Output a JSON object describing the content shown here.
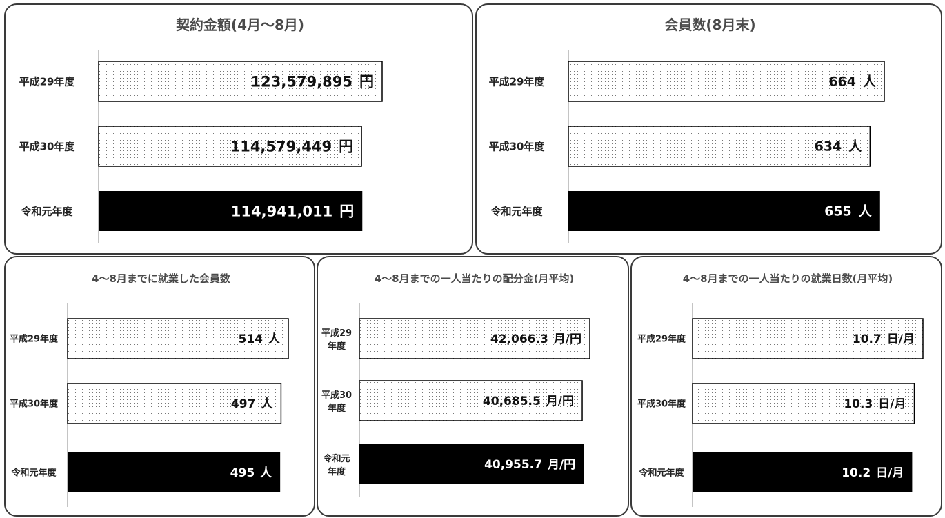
{
  "charts": [
    {
      "id": "contract",
      "title": "契約金額(4月〜8月)",
      "unit": "円",
      "categories": [
        "平成29年度",
        "平成30年度",
        "令和元年度"
      ],
      "values": [
        123579895,
        114579449,
        114941011
      ],
      "value_labels": [
        "123,579,895",
        "114,579,449",
        "114,941,011"
      ],
      "bar_styles": [
        "dotted",
        "dotted",
        "solid-black"
      ]
    },
    {
      "id": "members",
      "title": "会員数(8月末)",
      "unit": "人",
      "categories": [
        "平成29年度",
        "平成30年度",
        "令和元年度"
      ],
      "values": [
        664,
        634,
        655
      ],
      "value_labels": [
        "664",
        "634",
        "655"
      ],
      "bar_styles": [
        "dotted",
        "dotted",
        "solid-black"
      ]
    },
    {
      "id": "employed",
      "title": "4〜8月までに就業した会員数",
      "unit": "人",
      "categories": [
        "平成29年度",
        "平成30年度",
        "令和元年度"
      ],
      "values": [
        514,
        497,
        495
      ],
      "value_labels": [
        "514",
        "497",
        "495"
      ],
      "bar_styles": [
        "dotted",
        "dotted",
        "solid-black"
      ]
    },
    {
      "id": "allocation",
      "title": "4〜8月までの一人当たりの配分金(月平均)",
      "unit": "月/円",
      "categories": [
        "平成29年度",
        "平成30年度",
        "令和元年度"
      ],
      "category_lines": [
        [
          "平成29",
          "年度"
        ],
        [
          "平成30",
          "年度"
        ],
        [
          "令和元",
          "年度"
        ]
      ],
      "values": [
        42066.3,
        40685.5,
        40955.7
      ],
      "value_labels": [
        "42,066.3",
        "40,685.5",
        "40,955.7"
      ],
      "bar_styles": [
        "dotted",
        "dotted",
        "solid-black"
      ]
    },
    {
      "id": "workdays",
      "title": "4〜8月までの一人当たりの就業日数(月平均)",
      "unit": "日/月",
      "categories": [
        "平成29年度",
        "平成30年度",
        "令和元年度"
      ],
      "values": [
        10.7,
        10.3,
        10.2
      ],
      "value_labels": [
        "10.7",
        "10.3",
        "10.2"
      ],
      "bar_styles": [
        "dotted",
        "dotted",
        "solid-black"
      ]
    }
  ],
  "chart_data": [
    {
      "type": "bar",
      "orientation": "horizontal",
      "title": "契約金額(4月〜8月)",
      "categories": [
        "平成29年度",
        "平成30年度",
        "令和元年度"
      ],
      "values": [
        123579895,
        114579449,
        114941011
      ],
      "unit": "円"
    },
    {
      "type": "bar",
      "orientation": "horizontal",
      "title": "会員数(8月末)",
      "categories": [
        "平成29年度",
        "平成30年度",
        "令和元年度"
      ],
      "values": [
        664,
        634,
        655
      ],
      "unit": "人"
    },
    {
      "type": "bar",
      "orientation": "horizontal",
      "title": "4〜8月までに就業した会員数",
      "categories": [
        "平成29年度",
        "平成30年度",
        "令和元年度"
      ],
      "values": [
        514,
        497,
        495
      ],
      "unit": "人"
    },
    {
      "type": "bar",
      "orientation": "horizontal",
      "title": "4〜8月までの一人当たりの配分金(月平均)",
      "categories": [
        "平成29年度",
        "平成30年度",
        "令和元年度"
      ],
      "values": [
        42066.3,
        40685.5,
        40955.7
      ],
      "unit": "月/円"
    },
    {
      "type": "bar",
      "orientation": "horizontal",
      "title": "4〜8月までの一人当たりの就業日数(月平均)",
      "categories": [
        "平成29年度",
        "平成30年度",
        "令和元年度"
      ],
      "values": [
        10.7,
        10.3,
        10.2
      ],
      "unit": "日/月"
    }
  ]
}
